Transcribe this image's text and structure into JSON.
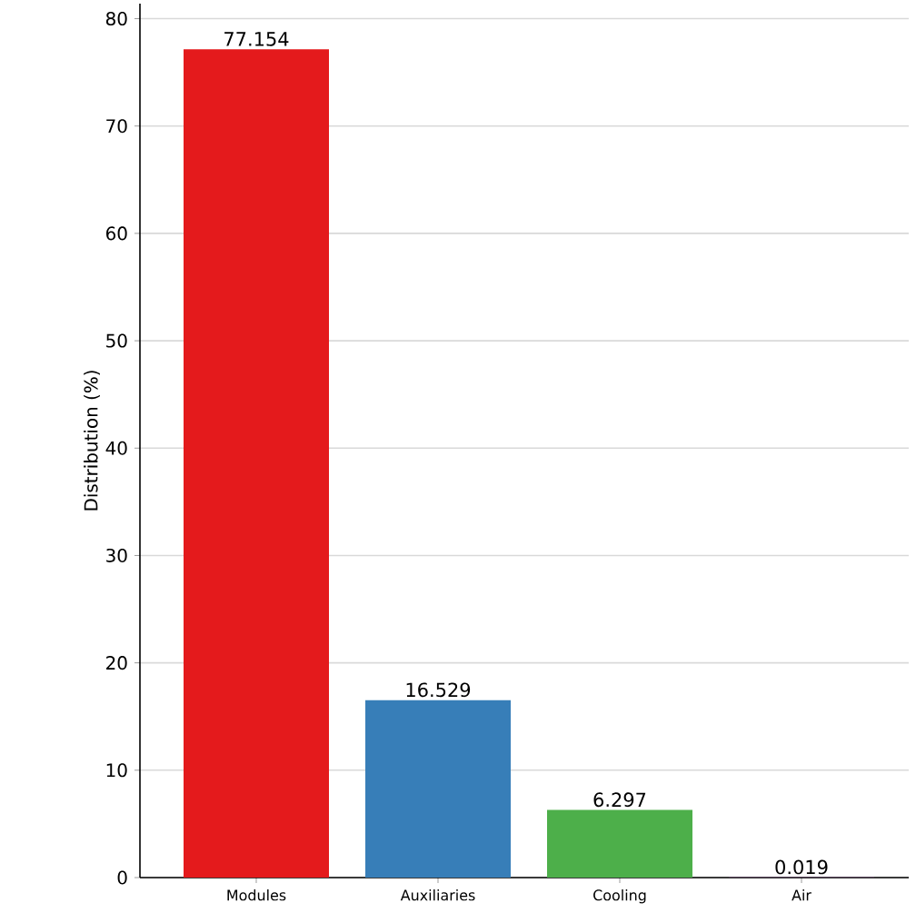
{
  "chart_data": {
    "type": "bar",
    "ylabel": "Distribution (%)",
    "categories": [
      "Modules",
      "Auxiliaries",
      "Cooling",
      "Air"
    ],
    "values": [
      77.154,
      16.529,
      6.297,
      0.019
    ],
    "colors": [
      "#e41a1c",
      "#377eb8",
      "#4daf4a",
      "#984ea3"
    ],
    "ylim": [
      0,
      81.4
    ],
    "yticks": [
      0,
      10,
      20,
      30,
      40,
      50,
      60,
      70,
      80
    ],
    "grid": "y",
    "data_labels": true
  }
}
